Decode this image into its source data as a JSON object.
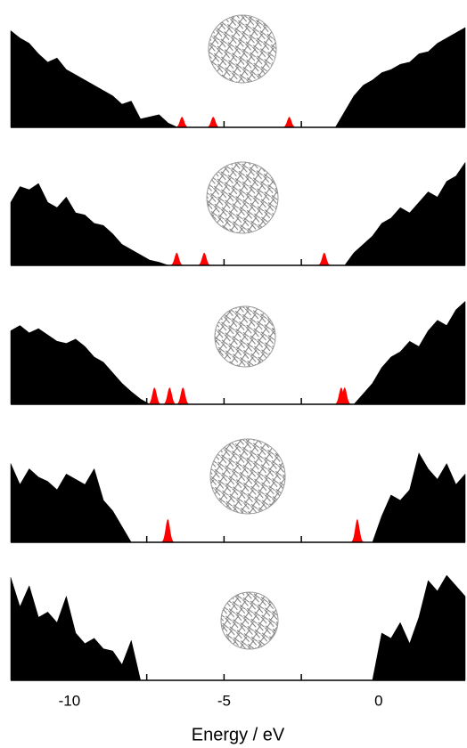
{
  "chart_data": [
    {
      "type": "area",
      "xlim": [
        -11.9,
        2.8
      ],
      "ylim": [
        0,
        100
      ],
      "minor_xticks": [
        -7.5,
        -5,
        -2.5
      ],
      "x": [
        -11.9,
        -11.6,
        -11.3,
        -11.0,
        -10.7,
        -10.4,
        -10.1,
        -9.8,
        -9.5,
        -9.2,
        -8.9,
        -8.6,
        -8.3,
        -8.0,
        -7.7,
        -7.4,
        -7.1,
        -6.8,
        -6.5,
        -6.2,
        -5.9,
        -5.6,
        -5.3,
        -5.0,
        -4.7,
        -4.4,
        -4.1,
        -3.8,
        -3.5,
        -3.2,
        -2.9,
        -2.6,
        -2.3,
        -2.0,
        -1.7,
        -1.4,
        -1.1,
        -0.8,
        -0.5,
        -0.2,
        0.1,
        0.4,
        0.7,
        1.0,
        1.3,
        1.6,
        1.9,
        2.2,
        2.5,
        2.8
      ],
      "series": [
        {
          "color": "#000000",
          "values": [
            92,
            85,
            80,
            70,
            62,
            66,
            55,
            50,
            45,
            40,
            35,
            30,
            22,
            25,
            8,
            10,
            12,
            4,
            0,
            0,
            0,
            0,
            0,
            0,
            0,
            0,
            0,
            0,
            0,
            0,
            0,
            0,
            0,
            0,
            0,
            0,
            15,
            30,
            40,
            45,
            52,
            55,
            60,
            62,
            70,
            72,
            80,
            85,
            90,
            95
          ]
        }
      ],
      "peaks": {
        "color": "#ff0000",
        "x": [
          -6.36,
          -5.35,
          -2.89
        ],
        "values": [
          10,
          10,
          10
        ]
      }
    },
    {
      "type": "area",
      "xlim": [
        -11.9,
        2.8
      ],
      "ylim": [
        0,
        100
      ],
      "minor_xticks": [
        -7.5,
        -5,
        -2.5
      ],
      "x": [
        -11.9,
        -11.6,
        -11.3,
        -11.0,
        -10.7,
        -10.4,
        -10.1,
        -9.8,
        -9.5,
        -9.2,
        -8.9,
        -8.6,
        -8.3,
        -8.0,
        -7.7,
        -7.4,
        -7.1,
        -6.8,
        -6.5,
        -6.2,
        -5.9,
        -5.6,
        -5.3,
        -5.0,
        -4.7,
        -4.4,
        -4.1,
        -3.8,
        -3.5,
        -3.2,
        -2.9,
        -2.6,
        -2.3,
        -2.0,
        -1.7,
        -1.4,
        -1.1,
        -0.8,
        -0.5,
        -0.2,
        0.1,
        0.4,
        0.7,
        1.0,
        1.3,
        1.6,
        1.9,
        2.2,
        2.5,
        2.8
      ],
      "series": [
        {
          "color": "#000000",
          "values": [
            60,
            75,
            72,
            78,
            60,
            55,
            65,
            50,
            48,
            40,
            38,
            30,
            20,
            15,
            10,
            5,
            3,
            0,
            0,
            0,
            0,
            0,
            0,
            0,
            0,
            0,
            0,
            0,
            0,
            0,
            0,
            0,
            0,
            0,
            0,
            0,
            0,
            12,
            20,
            28,
            40,
            45,
            55,
            50,
            60,
            70,
            65,
            80,
            85,
            98
          ]
        }
      ],
      "peaks": {
        "color": "#ff0000",
        "x": [
          -6.53,
          -5.64,
          -1.76
        ],
        "values": [
          12,
          12,
          12
        ]
      }
    },
    {
      "type": "area",
      "xlim": [
        -11.9,
        2.8
      ],
      "ylim": [
        0,
        100
      ],
      "minor_xticks": [
        -7.5,
        -5,
        -2.5
      ],
      "x": [
        -11.9,
        -11.6,
        -11.3,
        -11.0,
        -10.7,
        -10.4,
        -10.1,
        -9.8,
        -9.5,
        -9.2,
        -8.9,
        -8.6,
        -8.3,
        -8.0,
        -7.7,
        -7.4,
        -7.1,
        -6.8,
        -6.5,
        -6.2,
        -5.9,
        -5.6,
        -5.3,
        -5.0,
        -4.7,
        -4.4,
        -4.1,
        -3.8,
        -3.5,
        -3.2,
        -2.9,
        -2.6,
        -2.3,
        -2.0,
        -1.7,
        -1.4,
        -1.1,
        -0.8,
        -0.5,
        -0.2,
        0.1,
        0.4,
        0.7,
        1.0,
        1.3,
        1.6,
        1.9,
        2.2,
        2.5,
        2.8
      ],
      "series": [
        {
          "color": "#000000",
          "values": [
            70,
            75,
            68,
            72,
            66,
            60,
            58,
            62,
            55,
            45,
            40,
            30,
            20,
            12,
            5,
            0,
            0,
            0,
            0,
            0,
            0,
            0,
            0,
            0,
            0,
            0,
            0,
            0,
            0,
            0,
            0,
            0,
            0,
            0,
            0,
            0,
            0,
            0,
            10,
            20,
            35,
            45,
            50,
            60,
            55,
            70,
            80,
            75,
            90,
            98
          ]
        }
      ],
      "peaks": {
        "color": "#ff0000",
        "x": [
          -7.25,
          -6.76,
          -6.33,
          -1.21,
          -1.1
        ],
        "values": [
          16,
          16,
          16,
          16,
          16
        ]
      }
    },
    {
      "type": "area",
      "xlim": [
        -11.9,
        2.8
      ],
      "ylim": [
        0,
        100
      ],
      "minor_xticks": [
        -7.5,
        -5,
        -2.5
      ],
      "x": [
        -11.9,
        -11.6,
        -11.3,
        -11.0,
        -10.7,
        -10.4,
        -10.1,
        -9.8,
        -9.5,
        -9.2,
        -8.9,
        -8.6,
        -8.3,
        -8.0,
        -7.7,
        -7.4,
        -7.1,
        -6.8,
        -6.5,
        -6.2,
        -5.9,
        -5.6,
        -5.3,
        -5.0,
        -4.7,
        -4.4,
        -4.1,
        -3.8,
        -3.5,
        -3.2,
        -2.9,
        -2.6,
        -2.3,
        -2.0,
        -1.7,
        -1.4,
        -1.1,
        -0.8,
        -0.5,
        -0.2,
        0.1,
        0.4,
        0.7,
        1.0,
        1.3,
        1.6,
        1.9,
        2.2,
        2.5,
        2.8
      ],
      "series": [
        {
          "color": "#000000",
          "values": [
            75,
            55,
            70,
            62,
            58,
            50,
            65,
            60,
            55,
            70,
            40,
            30,
            15,
            0,
            0,
            0,
            0,
            0,
            0,
            0,
            0,
            0,
            0,
            0,
            0,
            0,
            0,
            0,
            0,
            0,
            0,
            0,
            0,
            0,
            0,
            0,
            0,
            0,
            0,
            0,
            25,
            45,
            40,
            50,
            85,
            70,
            60,
            75,
            55,
            65
          ]
        }
      ],
      "peaks": {
        "color": "#ff0000",
        "x": [
          -6.82,
          -0.69
        ],
        "values": [
          22,
          22
        ]
      }
    },
    {
      "type": "area",
      "xlim": [
        -11.9,
        2.8
      ],
      "ylim": [
        0,
        100
      ],
      "xticks": [
        -10,
        -5,
        0
      ],
      "minor_xticks": [
        -7.5,
        -2.5
      ],
      "xlabel": "Energy / eV",
      "x": [
        -11.9,
        -11.6,
        -11.3,
        -11.0,
        -10.7,
        -10.4,
        -10.1,
        -9.8,
        -9.5,
        -9.2,
        -8.9,
        -8.6,
        -8.3,
        -8.0,
        -7.7,
        -7.4,
        -7.1,
        -6.8,
        -6.5,
        -6.2,
        -5.9,
        -5.6,
        -5.3,
        -5.0,
        -4.7,
        -4.4,
        -4.1,
        -3.8,
        -3.5,
        -3.2,
        -2.9,
        -2.6,
        -2.3,
        -2.0,
        -1.7,
        -1.4,
        -1.1,
        -0.8,
        -0.5,
        -0.2,
        0.1,
        0.4,
        0.7,
        1.0,
        1.3,
        1.6,
        1.9,
        2.2,
        2.5,
        2.8
      ],
      "series": [
        {
          "color": "#000000",
          "values": [
            98,
            70,
            90,
            60,
            65,
            55,
            80,
            45,
            35,
            40,
            30,
            28,
            15,
            38,
            0,
            0,
            0,
            0,
            0,
            0,
            0,
            0,
            0,
            0,
            0,
            0,
            0,
            0,
            0,
            0,
            0,
            0,
            0,
            0,
            0,
            0,
            0,
            0,
            0,
            0,
            45,
            40,
            55,
            35,
            60,
            95,
            85,
            100,
            90,
            80
          ]
        }
      ]
    }
  ]
}
